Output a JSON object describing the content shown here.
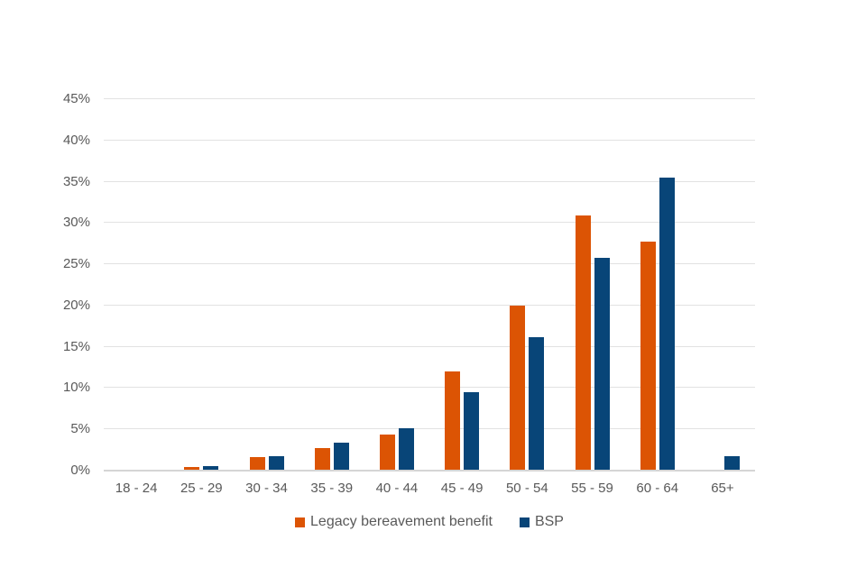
{
  "chart_data": {
    "type": "bar",
    "categories": [
      "18 - 24",
      "25 - 29",
      "30 - 34",
      "35 - 39",
      "40 - 44",
      "45 - 49",
      "50 - 54",
      "55 - 59",
      "60 - 64",
      "65+"
    ],
    "series": [
      {
        "name": "Legacy bereavement benefit",
        "color": "#DC5404",
        "values": [
          0,
          0.4,
          1.6,
          2.7,
          4.4,
          12.0,
          20.0,
          30.9,
          27.7,
          0
        ]
      },
      {
        "name": "BSP",
        "color": "#084578",
        "values": [
          0,
          0.6,
          1.7,
          3.4,
          5.1,
          9.5,
          16.2,
          25.8,
          35.5,
          1.7
        ]
      }
    ],
    "title": "",
    "xlabel": "",
    "ylabel": "",
    "ylim": [
      0,
      45
    ],
    "ytick_values": [
      0,
      5,
      10,
      15,
      20,
      25,
      30,
      35,
      40,
      45
    ],
    "ytick_labels": [
      "0%",
      "5%",
      "10%",
      "15%",
      "20%",
      "25%",
      "30%",
      "35%",
      "40%",
      "45%"
    ],
    "grid": true,
    "legend_position": "bottom",
    "colors": {
      "background": "#ffffff",
      "gridline": "#e2e2e2",
      "baseline": "#d5d5d5",
      "axis_text": "#595959"
    }
  }
}
